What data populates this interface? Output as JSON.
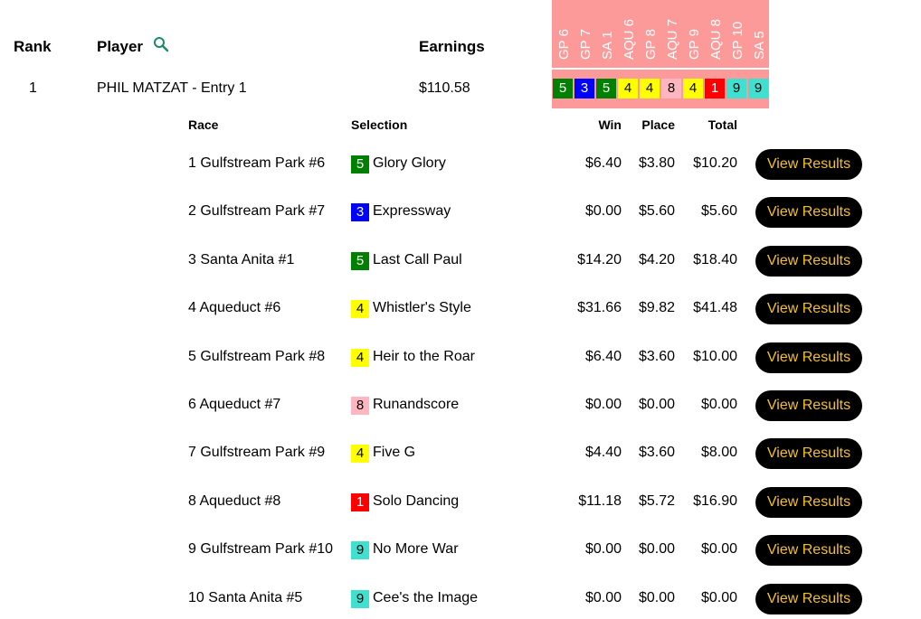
{
  "header": {
    "rank": "Rank",
    "player": "Player",
    "earnings": "Earnings",
    "search_icon": "magnifier-icon"
  },
  "entry": {
    "rank": "1",
    "player": "PHIL MATZAT - Entry 1",
    "earnings": "$110.58"
  },
  "race_columns": [
    "GP 6",
    "GP 7",
    "SA 1",
    "AQU 6",
    "GP 8",
    "AQU 7",
    "GP 9",
    "AQU 8",
    "GP 10",
    "SA 5"
  ],
  "colors": {
    "header_bg": "#fc9a9a",
    "button_text": "#f5c023",
    "button_bg": "#000000"
  },
  "detail_headers": {
    "race": "Race",
    "selection": "Selection",
    "win": "Win",
    "place": "Place",
    "total": "Total"
  },
  "rows": [
    {
      "race": "1 Gulfstream Park #6",
      "num": "5",
      "bg": "#008000",
      "fg": "#ffffff",
      "horse": "Glory Glory",
      "win": "$6.40",
      "place": "$3.80",
      "total": "$10.20",
      "button": "View Results"
    },
    {
      "race": "2 Gulfstream Park #7",
      "num": "3",
      "bg": "#0000ff",
      "fg": "#ffffff",
      "horse": "Expressway",
      "win": "$0.00",
      "place": "$5.60",
      "total": "$5.60",
      "button": "View Results"
    },
    {
      "race": "3 Santa Anita #1",
      "num": "5",
      "bg": "#008000",
      "fg": "#ffffff",
      "horse": "Last Call Paul",
      "win": "$14.20",
      "place": "$4.20",
      "total": "$18.40",
      "button": "View Results"
    },
    {
      "race": "4 Aqueduct #6",
      "num": "4",
      "bg": "#ffff00",
      "fg": "#000000",
      "horse": "Whistler's Style",
      "win": "$31.66",
      "place": "$9.82",
      "total": "$41.48",
      "button": "View Results"
    },
    {
      "race": "5 Gulfstream Park #8",
      "num": "4",
      "bg": "#ffff00",
      "fg": "#000000",
      "horse": "Heir to the Roar",
      "win": "$6.40",
      "place": "$3.60",
      "total": "$10.00",
      "button": "View Results"
    },
    {
      "race": "6 Aqueduct #7",
      "num": "8",
      "bg": "#ffb6c1",
      "fg": "#000000",
      "horse": "Runandscore",
      "win": "$0.00",
      "place": "$0.00",
      "total": "$0.00",
      "button": "View Results"
    },
    {
      "race": "7 Gulfstream Park #9",
      "num": "4",
      "bg": "#ffff00",
      "fg": "#000000",
      "horse": "Five G",
      "win": "$4.40",
      "place": "$3.60",
      "total": "$8.00",
      "button": "View Results"
    },
    {
      "race": "8 Aqueduct #8",
      "num": "1",
      "bg": "#ff0000",
      "fg": "#ffffff",
      "horse": "Solo Dancing",
      "win": "$11.18",
      "place": "$5.72",
      "total": "$16.90",
      "button": "View Results"
    },
    {
      "race": "9 Gulfstream Park #10",
      "num": "9",
      "bg": "#40e0d0",
      "fg": "#000000",
      "horse": "No More War",
      "win": "$0.00",
      "place": "$0.00",
      "total": "$0.00",
      "button": "View Results"
    },
    {
      "race": "10 Santa Anita #5",
      "num": "9",
      "bg": "#40e0d0",
      "fg": "#000000",
      "horse": "Cee's the Image",
      "win": "$0.00",
      "place": "$0.00",
      "total": "$0.00",
      "button": "View Results"
    }
  ]
}
